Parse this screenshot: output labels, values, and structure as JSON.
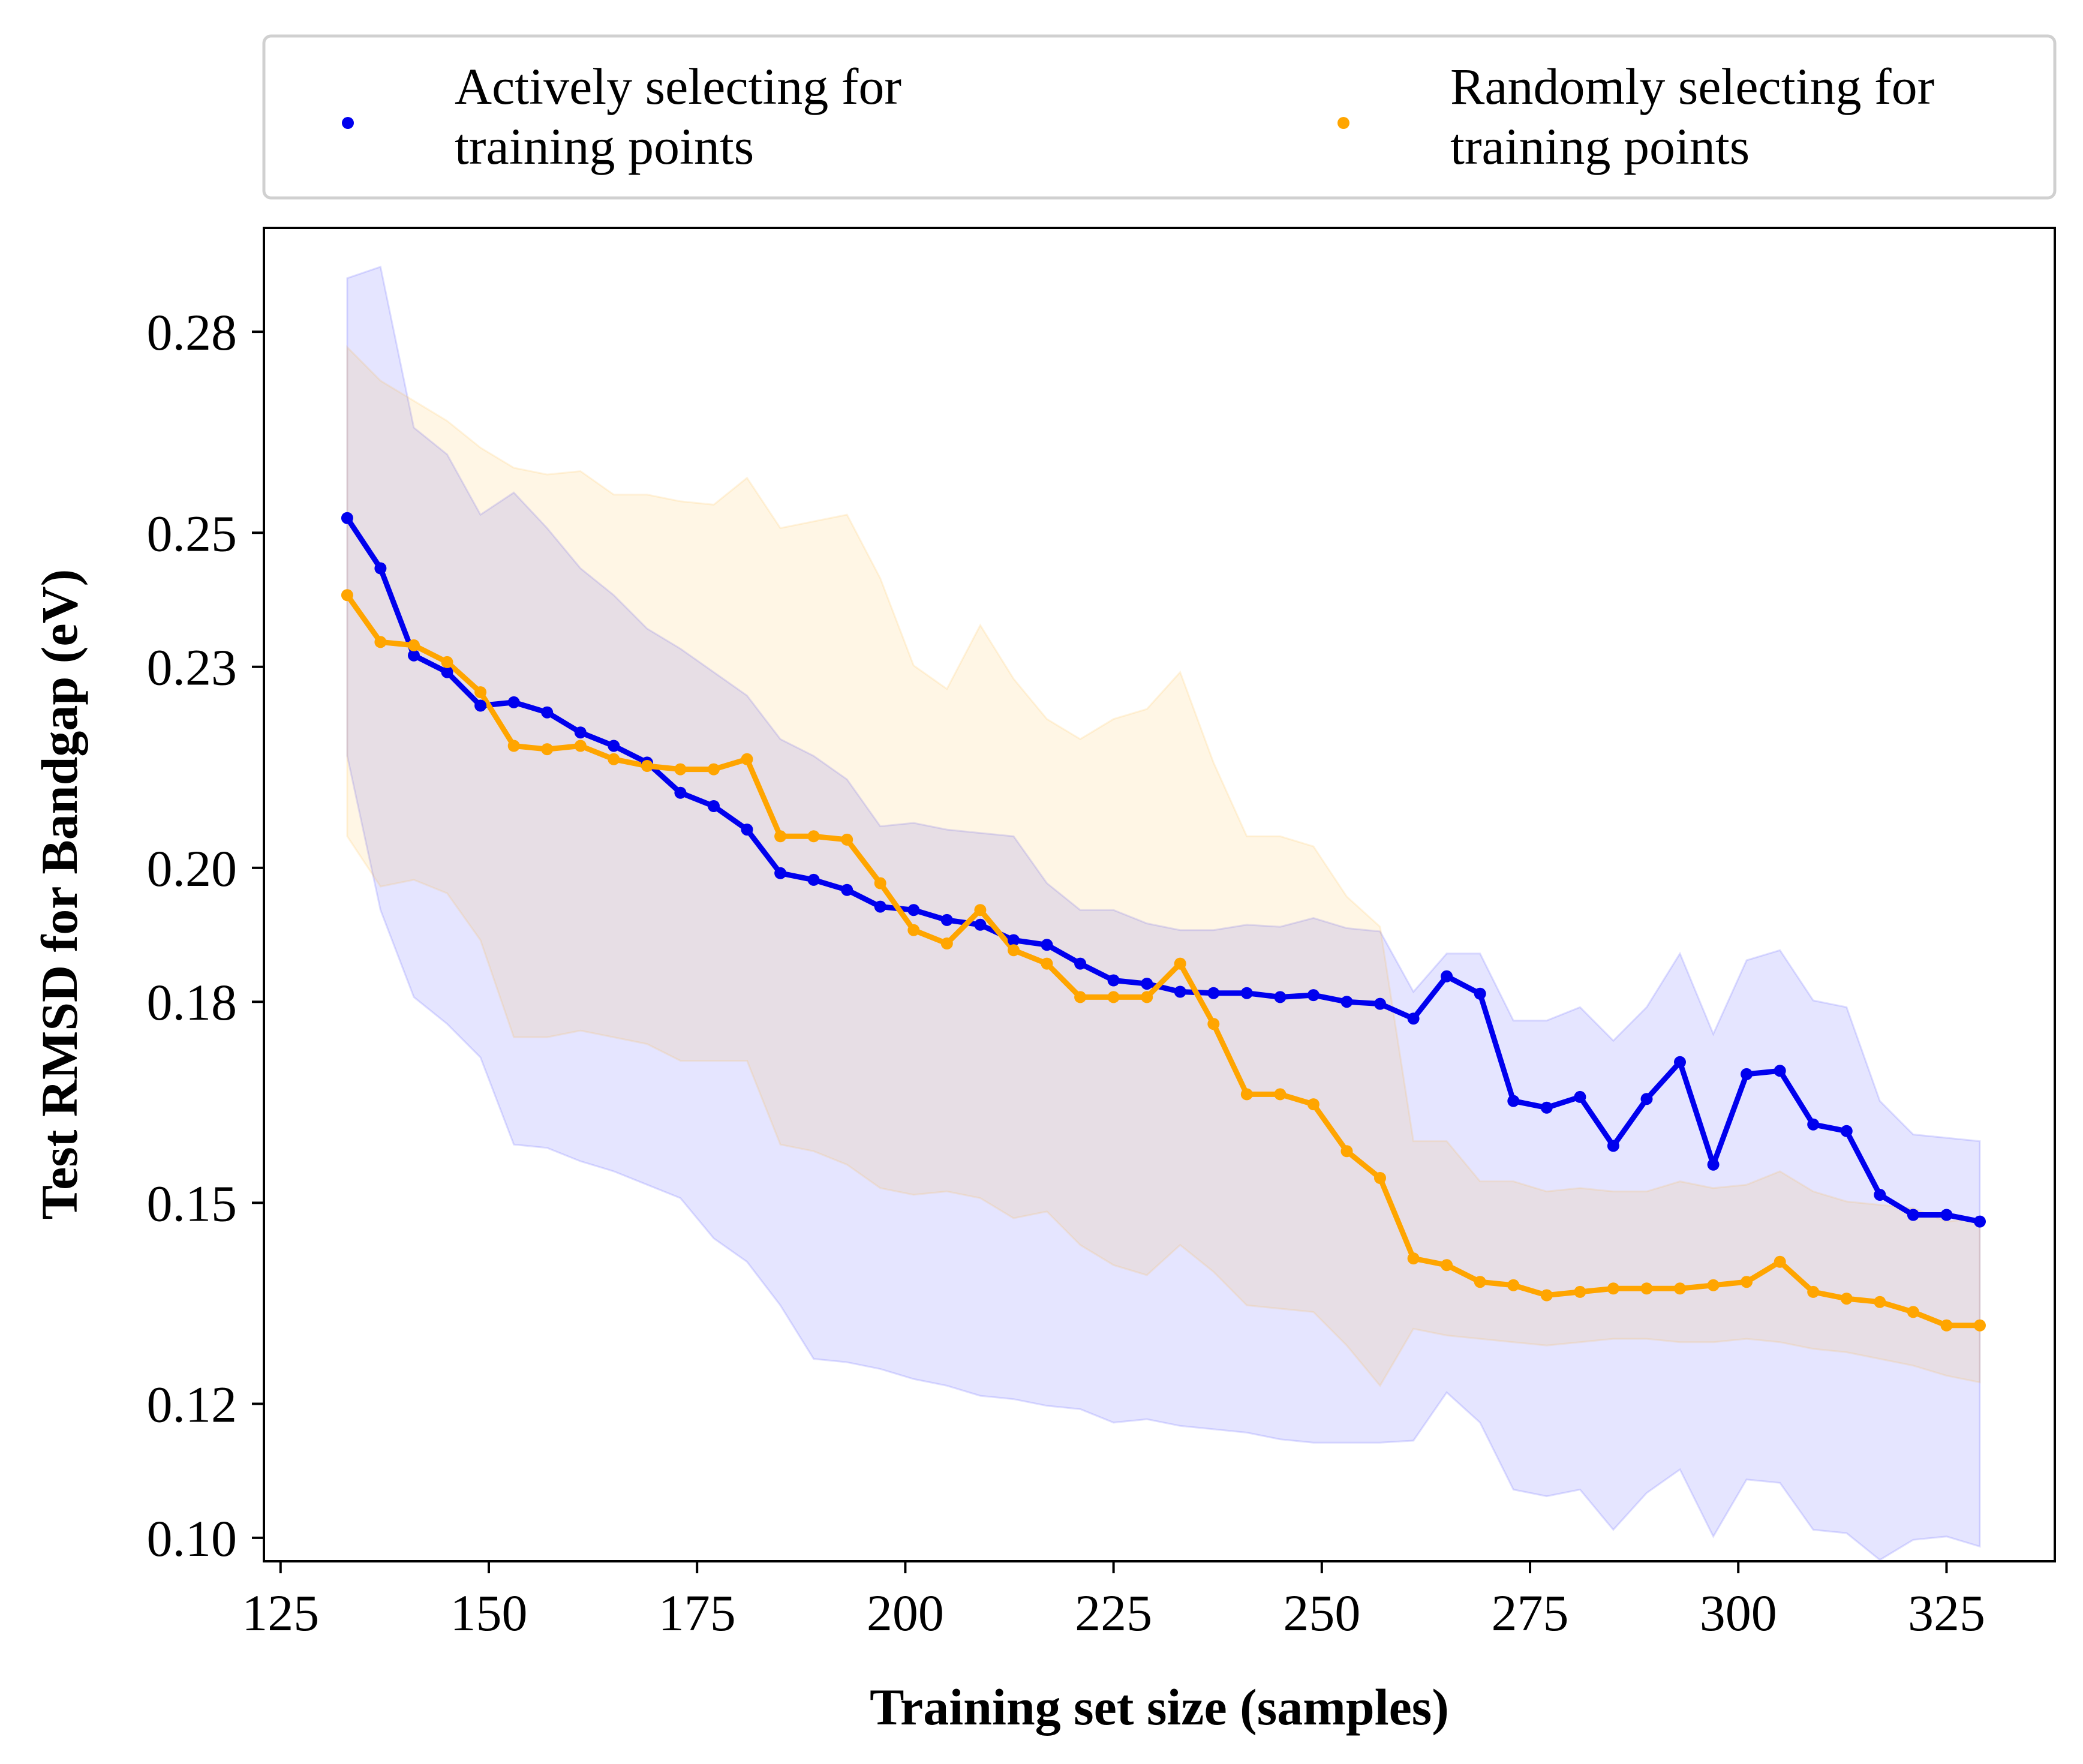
{
  "chart_data": {
    "type": "line",
    "xlabel": "Training set size (samples)",
    "ylabel": "Test RMSD for Bandgap (eV)",
    "xlim": [
      123,
      338
    ],
    "ylim": [
      0.0965,
      0.2955
    ],
    "xticks": [
      125,
      150,
      175,
      200,
      225,
      250,
      275,
      300,
      325
    ],
    "yticks": [
      0.1,
      0.12,
      0.15,
      0.18,
      0.2,
      0.23,
      0.25,
      0.28
    ],
    "ytick_labels": [
      "0.10",
      "0.12",
      "0.15",
      "0.18",
      "0.20",
      "0.23",
      "0.25",
      "0.28"
    ],
    "grid": false,
    "legend_position": "top",
    "x": [
      133,
      137,
      141,
      145,
      149,
      153,
      157,
      161,
      165,
      169,
      173,
      177,
      181,
      185,
      189,
      193,
      197,
      201,
      205,
      209,
      213,
      217,
      221,
      225,
      229,
      233,
      237,
      241,
      245,
      249,
      253,
      257,
      261,
      265,
      269,
      273,
      277,
      281,
      285,
      289,
      293,
      297,
      301,
      305,
      309,
      313,
      317,
      321,
      325,
      329
    ],
    "series": [
      {
        "name": "Actively selecting for\ntraining points",
        "color": "#0000ee",
        "band_color": "#0000ff",
        "values": [
          0.2522,
          0.2447,
          0.2317,
          0.2292,
          0.2242,
          0.2247,
          0.2232,
          0.2202,
          0.2182,
          0.2157,
          0.2112,
          0.2092,
          0.2057,
          0.1992,
          0.1982,
          0.1967,
          0.1942,
          0.1937,
          0.1922,
          0.1915,
          0.1892,
          0.1885,
          0.1857,
          0.1832,
          0.1827,
          0.1815,
          0.1813,
          0.1813,
          0.1807,
          0.181,
          0.18,
          0.1797,
          0.1775,
          0.1838,
          0.1812,
          0.1652,
          0.1642,
          0.1658,
          0.1585,
          0.1655,
          0.171,
          0.1557,
          0.1692,
          0.1697,
          0.1617,
          0.1607,
          0.1512,
          0.1482,
          0.1482,
          0.1472
        ],
        "upper": [
          0.288,
          0.2897,
          0.2657,
          0.2617,
          0.2527,
          0.256,
          0.2507,
          0.2447,
          0.2407,
          0.2357,
          0.2327,
          0.2292,
          0.2257,
          0.2192,
          0.2167,
          0.2132,
          0.2062,
          0.2067,
          0.2057,
          0.2052,
          0.2047,
          0.1977,
          0.1937,
          0.1937,
          0.1917,
          0.1907,
          0.1907,
          0.1915,
          0.1912,
          0.1925,
          0.191,
          0.1905,
          0.1815,
          0.1872,
          0.1872,
          0.1772,
          0.1772,
          0.1792,
          0.1742,
          0.1792,
          0.1872,
          0.1752,
          0.1862,
          0.1877,
          0.1802,
          0.1792,
          0.1652,
          0.1602,
          0.1597,
          0.1592
        ],
        "lower": [
          0.2167,
          0.1937,
          0.1807,
          0.1767,
          0.1717,
          0.1587,
          0.1582,
          0.1562,
          0.1547,
          0.1527,
          0.1507,
          0.1447,
          0.1412,
          0.1347,
          0.1267,
          0.1262,
          0.1252,
          0.1237,
          0.1227,
          0.1212,
          0.1207,
          0.1197,
          0.1192,
          0.1172,
          0.1177,
          0.1167,
          0.1162,
          0.1157,
          0.1147,
          0.1142,
          0.1142,
          0.1142,
          0.1145,
          0.1217,
          0.1172,
          0.1072,
          0.1062,
          0.1072,
          0.1012,
          0.1067,
          0.1102,
          0.1002,
          0.1087,
          0.1082,
          0.1012,
          0.1007,
          0.0967,
          0.0997,
          0.1002,
          0.0987
        ]
      },
      {
        "name": "Randomly selecting for\ntraining points",
        "color": "#ffa500",
        "band_color": "#ffa500",
        "values": [
          0.2407,
          0.2337,
          0.2332,
          0.2307,
          0.2262,
          0.2182,
          0.2177,
          0.2182,
          0.2162,
          0.2152,
          0.2147,
          0.2147,
          0.2162,
          0.2047,
          0.2047,
          0.2042,
          0.1977,
          0.1907,
          0.1887,
          0.1937,
          0.1877,
          0.1857,
          0.1807,
          0.1807,
          0.1807,
          0.1857,
          0.1767,
          0.1662,
          0.1662,
          0.1647,
          0.1577,
          0.1537,
          0.1417,
          0.1407,
          0.1382,
          0.1377,
          0.1362,
          0.1367,
          0.1372,
          0.1372,
          0.1372,
          0.1377,
          0.1382,
          0.1412,
          0.1367,
          0.1357,
          0.1352,
          0.1337,
          0.1317,
          0.1317
        ],
        "upper": [
          0.2777,
          0.2727,
          0.2697,
          0.2667,
          0.2627,
          0.2597,
          0.2587,
          0.2592,
          0.2557,
          0.2557,
          0.2547,
          0.2542,
          0.2582,
          0.2507,
          0.2517,
          0.2527,
          0.2432,
          0.2302,
          0.2267,
          0.2362,
          0.2282,
          0.2222,
          0.2192,
          0.2222,
          0.2237,
          0.2292,
          0.2157,
          0.2047,
          0.2047,
          0.2032,
          0.1957,
          0.1912,
          0.1592,
          0.1592,
          0.1532,
          0.1532,
          0.1517,
          0.1522,
          0.1517,
          0.1517,
          0.1532,
          0.1522,
          0.1527,
          0.1547,
          0.1517,
          0.1502,
          0.1497,
          0.1492,
          0.1472,
          0.1477
        ],
        "lower": [
          0.2047,
          0.1972,
          0.1982,
          0.1962,
          0.1892,
          0.1747,
          0.1747,
          0.1757,
          0.1747,
          0.1737,
          0.1712,
          0.1712,
          0.1712,
          0.1587,
          0.1577,
          0.1557,
          0.1522,
          0.1512,
          0.1517,
          0.1507,
          0.1477,
          0.1487,
          0.1437,
          0.1407,
          0.1392,
          0.1437,
          0.1397,
          0.1347,
          0.1342,
          0.1337,
          0.1287,
          0.1227,
          0.1312,
          0.1302,
          0.1297,
          0.1292,
          0.1287,
          0.1292,
          0.1297,
          0.1297,
          0.1292,
          0.1292,
          0.1297,
          0.1292,
          0.1282,
          0.1277,
          0.1267,
          0.1257,
          0.1242,
          0.1232
        ]
      }
    ]
  }
}
